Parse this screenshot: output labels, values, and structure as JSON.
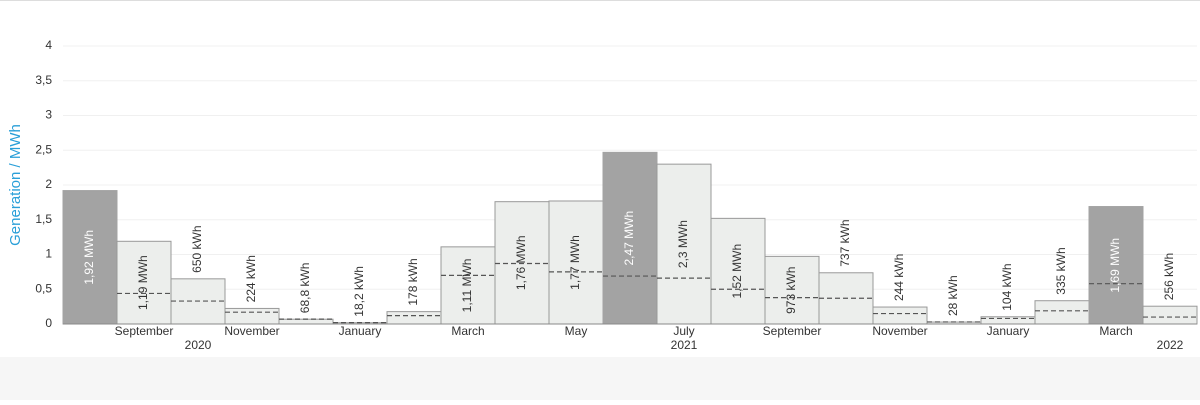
{
  "chart_data": {
    "type": "bar",
    "y_label": "Generation / MWh",
    "categories": [
      null,
      "September",
      null,
      "November",
      null,
      "January",
      null,
      "March",
      null,
      "May",
      null,
      "July",
      null,
      "September",
      null,
      "November",
      null,
      "January",
      null,
      "March",
      null
    ],
    "year_labels": [
      null,
      null,
      "2020",
      null,
      null,
      null,
      null,
      null,
      null,
      null,
      null,
      "2021",
      null,
      null,
      null,
      null,
      null,
      null,
      null,
      null,
      "2022"
    ],
    "values": [
      1.92,
      1.19,
      0.65,
      0.224,
      0.0688,
      0.0182,
      0.178,
      1.11,
      1.76,
      1.77,
      2.47,
      2.3,
      1.52,
      0.973,
      0.737,
      0.244,
      0.028,
      0.104,
      0.335,
      1.69,
      0.256
    ],
    "value_labels": [
      "1,92 MWh",
      "1,19 MWh",
      "650 kWh",
      "224 kWh",
      "68,8 kWh",
      "18,2 kWh",
      "178 kWh",
      "1,11 MWh",
      "1,76 MWh",
      "1,77 MWh",
      "2,47 MWh",
      "2,3 MWh",
      "1,52 MWh",
      "973 kWh",
      "737 kWh",
      "244 kWh",
      "28 kWh",
      "104 kWh",
      "335 kWh",
      "1,69 MWh",
      "256 kWh"
    ],
    "expected": [
      null,
      0.44,
      0.33,
      0.17,
      0.07,
      0.02,
      0.12,
      0.7,
      0.87,
      0.75,
      0.69,
      0.66,
      0.5,
      0.38,
      0.37,
      0.15,
      0.03,
      0.08,
      0.19,
      0.58,
      0.1
    ],
    "bar_colors": [
      "#a3a3a3",
      "#eceeec",
      "#eceeec",
      "#eceeec",
      "#eceeec",
      "#eceeec",
      "#eceeec",
      "#eceeec",
      "#eceeec",
      "#eceeec",
      "#a3a3a3",
      "#eceeec",
      "#eceeec",
      "#eceeec",
      "#eceeec",
      "#eceeec",
      "#eceeec",
      "#eceeec",
      "#eceeec",
      "#a3a3a3",
      "#eceeec"
    ],
    "ylim": [
      0,
      4
    ],
    "yticks": [
      0,
      {
        "value": 0.5,
        "label": "0,5"
      },
      1,
      {
        "value": 1.5,
        "label": "1,5"
      },
      2,
      {
        "value": 2.5,
        "label": "2,5"
      },
      3,
      {
        "value": 3.5,
        "label": "3,5"
      },
      4
    ],
    "grid": true
  }
}
